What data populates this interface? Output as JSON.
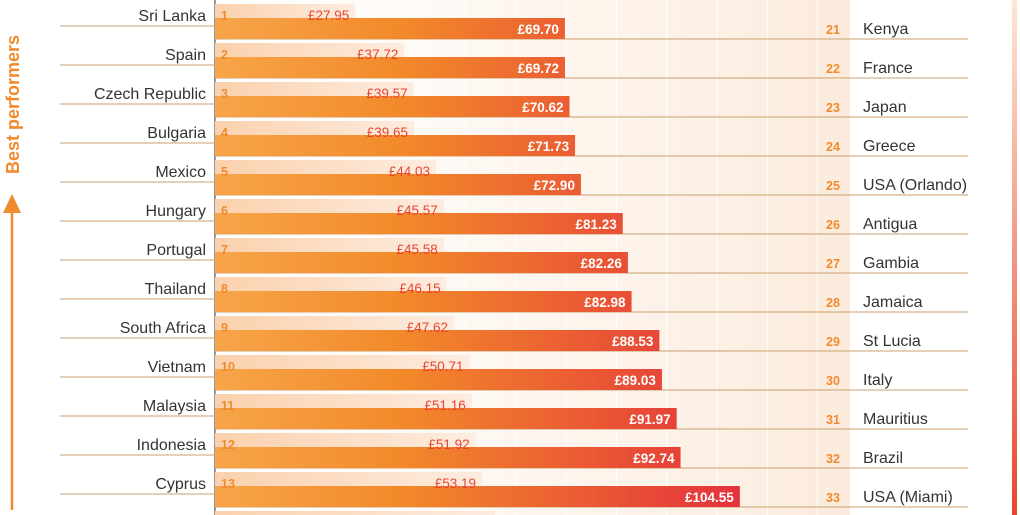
{
  "chart_data": {
    "type": "bar",
    "side_label": "Best performers",
    "currency": "£",
    "left": [
      {
        "rank": 1,
        "name": "Sri Lanka",
        "value": 27.95
      },
      {
        "rank": 2,
        "name": "Spain",
        "value": 37.72
      },
      {
        "rank": 3,
        "name": "Czech Republic",
        "value": 39.57
      },
      {
        "rank": 4,
        "name": "Bulgaria",
        "value": 39.65
      },
      {
        "rank": 5,
        "name": "Mexico",
        "value": 44.03
      },
      {
        "rank": 6,
        "name": "Hungary",
        "value": 45.57
      },
      {
        "rank": 7,
        "name": "Portugal",
        "value": 45.58
      },
      {
        "rank": 8,
        "name": "Thailand",
        "value": 46.15
      },
      {
        "rank": 9,
        "name": "South Africa",
        "value": 47.62
      },
      {
        "rank": 10,
        "name": "Vietnam",
        "value": 50.71
      },
      {
        "rank": 11,
        "name": "Malaysia",
        "value": 51.16
      },
      {
        "rank": 12,
        "name": "Indonesia",
        "value": 51.92
      },
      {
        "rank": 13,
        "name": "Cyprus",
        "value": 53.19
      }
    ],
    "right": [
      {
        "rank": 21,
        "name": "Kenya",
        "value": 69.7
      },
      {
        "rank": 22,
        "name": "France",
        "value": 69.72
      },
      {
        "rank": 23,
        "name": "Japan",
        "value": 70.62
      },
      {
        "rank": 24,
        "name": "Greece",
        "value": 71.73
      },
      {
        "rank": 25,
        "name": "USA (Orlando)",
        "value": 72.9
      },
      {
        "rank": 26,
        "name": "Antigua",
        "value": 81.23
      },
      {
        "rank": 27,
        "name": "Gambia",
        "value": 82.26
      },
      {
        "rank": 28,
        "name": "Jamaica",
        "value": 82.98
      },
      {
        "rank": 29,
        "name": "St Lucia",
        "value": 88.53
      },
      {
        "rank": 30,
        "name": "Italy",
        "value": 89.03
      },
      {
        "rank": 31,
        "name": "Mauritius",
        "value": 91.97
      },
      {
        "rank": 32,
        "name": "Brazil",
        "value": 92.74
      },
      {
        "rank": 33,
        "name": "USA (Miami)",
        "value": 104.55
      }
    ],
    "colors": {
      "accent": "#f08a2c",
      "value_red": "#e8452f",
      "light_bar_start": "#fbd3b0",
      "light_bar_end": "#fdebdc",
      "dark_bar_start": "#f5962f",
      "dark_bar_end": "#e5373a",
      "line": "#c8a070"
    }
  }
}
